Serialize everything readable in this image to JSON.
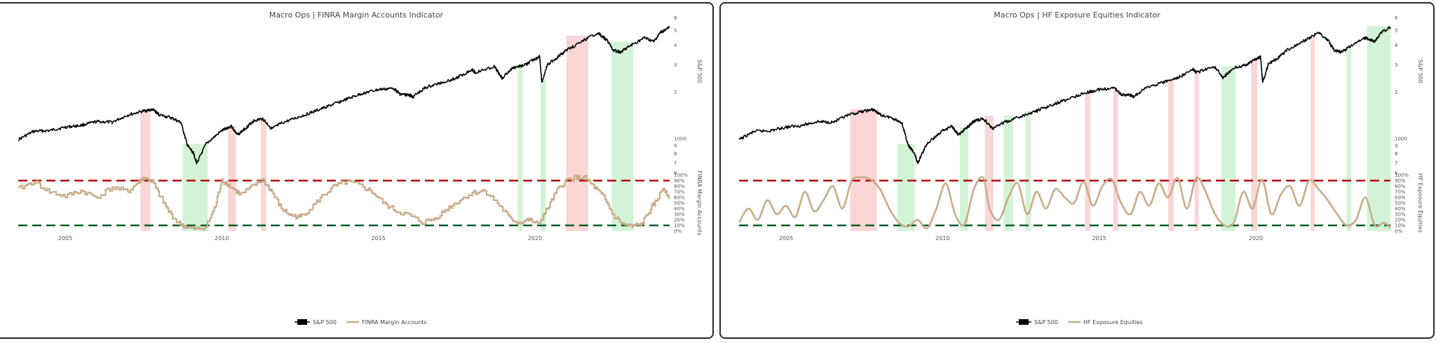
{
  "colors": {
    "sp500": "#000000",
    "indicator": "#c8ac8a",
    "upper_line": "#b30000",
    "lower_line": "#0b5d2a",
    "sell_zone": "#f5a3a3",
    "buy_zone": "#a8e8b0",
    "panel_border": "#2b2b2b"
  },
  "chart_data": [
    {
      "type": "line",
      "title": "Macro Ops | FINRA Margin Accounts Indicator",
      "x_range": [
        2003.5,
        2024.3
      ],
      "x_ticks": [
        "2005",
        "2010",
        "2015",
        "2020"
      ],
      "y_right": {
        "label": "S&P 500",
        "scale": "log",
        "range": [
          550,
          5200
        ],
        "ticks": [
          {
            "v": 600,
            "t": "6"
          },
          {
            "v": 700,
            "t": "7"
          },
          {
            "v": 800,
            "t": "8"
          },
          {
            "v": 900,
            "t": "9"
          },
          {
            "v": 1000,
            "t": "1000"
          },
          {
            "v": 2000,
            "t": "2"
          },
          {
            "v": 3000,
            "t": "3"
          },
          {
            "v": 4000,
            "t": "4"
          },
          {
            "v": 5000,
            "t": "5"
          },
          {
            "v": 6000,
            "t": "6"
          }
        ]
      },
      "y_right2": {
        "label": "FINRA Margin Accounts",
        "range": [
          0,
          100
        ],
        "ticks": [
          "0%",
          "10%",
          "20%",
          "30%",
          "40%",
          "50%",
          "60%",
          "70%",
          "80%",
          "90%",
          "100%"
        ]
      },
      "thresholds": {
        "upper": 90,
        "lower": 10
      },
      "legend": [
        "S&P 500",
        "FINRA Margin Accounts"
      ],
      "legend_position": "bottom-center",
      "indicator_style": "step",
      "series": [
        {
          "name": "S&P 500",
          "x": [
            2003.5,
            2004.0,
            2004.5,
            2005.0,
            2005.5,
            2006.0,
            2006.5,
            2007.0,
            2007.5,
            2007.8,
            2008.0,
            2008.4,
            2008.7,
            2008.9,
            2009.1,
            2009.2,
            2009.5,
            2010.0,
            2010.3,
            2010.5,
            2010.8,
            2011.0,
            2011.3,
            2011.6,
            2011.9,
            2012.5,
            2013.0,
            2013.5,
            2014.0,
            2014.5,
            2015.0,
            2015.5,
            2015.7,
            2016.0,
            2016.1,
            2016.5,
            2017.0,
            2017.5,
            2018.0,
            2018.1,
            2018.7,
            2018.95,
            2019.3,
            2019.7,
            2020.0,
            2020.15,
            2020.22,
            2020.4,
            2020.7,
            2021.0,
            2021.5,
            2022.0,
            2022.3,
            2022.5,
            2022.75,
            2023.0,
            2023.5,
            2023.8,
            2024.0,
            2024.3
          ],
          "values": [
            980,
            1110,
            1120,
            1180,
            1210,
            1280,
            1270,
            1410,
            1500,
            1530,
            1420,
            1350,
            1260,
            900,
            800,
            690,
            920,
            1120,
            1200,
            1050,
            1180,
            1290,
            1340,
            1150,
            1250,
            1380,
            1500,
            1640,
            1790,
            1950,
            2060,
            2100,
            1920,
            1900,
            1850,
            2120,
            2280,
            2450,
            2780,
            2650,
            2900,
            2450,
            2850,
            2980,
            3250,
            3350,
            2300,
            3000,
            3300,
            3700,
            4200,
            4790,
            4300,
            3700,
            3600,
            3900,
            4450,
            4200,
            4800,
            5200
          ]
        },
        {
          "name": "FINRA Margin Accounts",
          "x": [
            2003.5,
            2004.0,
            2004.5,
            2005.0,
            2005.5,
            2006.0,
            2006.5,
            2007.0,
            2007.3,
            2007.5,
            2007.8,
            2008.0,
            2008.3,
            2008.6,
            2008.9,
            2009.2,
            2009.5,
            2009.8,
            2010.0,
            2010.3,
            2010.6,
            2011.0,
            2011.3,
            2011.6,
            2011.9,
            2012.2,
            2012.5,
            2012.8,
            2013.2,
            2013.6,
            2014.0,
            2014.4,
            2014.8,
            2015.2,
            2015.6,
            2016.0,
            2016.4,
            2016.8,
            2017.2,
            2017.6,
            2018.0,
            2018.4,
            2018.8,
            2019.2,
            2019.5,
            2019.8,
            2020.1,
            2020.4,
            2020.7,
            2021.0,
            2021.3,
            2021.6,
            2021.9,
            2022.2,
            2022.5,
            2022.8,
            2023.1,
            2023.4,
            2023.7,
            2023.9,
            2024.1,
            2024.3
          ],
          "values": [
            75,
            88,
            70,
            62,
            72,
            60,
            78,
            70,
            85,
            95,
            88,
            65,
            35,
            15,
            6,
            3,
            8,
            45,
            92,
            78,
            65,
            80,
            92,
            70,
            40,
            28,
            25,
            38,
            62,
            80,
            88,
            82,
            70,
            48,
            35,
            28,
            15,
            22,
            40,
            55,
            68,
            72,
            50,
            22,
            15,
            20,
            12,
            40,
            72,
            90,
            96,
            95,
            78,
            60,
            28,
            12,
            8,
            12,
            40,
            55,
            78,
            60
          ]
        }
      ],
      "zones": [
        {
          "kind": "sell",
          "x0": 2007.4,
          "x1": 2007.72,
          "v_top": 1530
        },
        {
          "kind": "buy",
          "x0": 2008.75,
          "x1": 2009.55,
          "v_top": 920
        },
        {
          "kind": "sell",
          "x0": 2010.2,
          "x1": 2010.45,
          "v_top": 1200
        },
        {
          "kind": "sell",
          "x0": 2011.25,
          "x1": 2011.42,
          "v_top": 1340
        },
        {
          "kind": "buy",
          "x0": 2019.45,
          "x1": 2019.6,
          "v_top": 2980
        },
        {
          "kind": "buy",
          "x0": 2020.18,
          "x1": 2020.35,
          "v_top": 2400
        },
        {
          "kind": "sell",
          "x0": 2021.0,
          "x1": 2021.7,
          "v_top": 4600
        },
        {
          "kind": "buy",
          "x0": 2022.45,
          "x1": 2023.15,
          "v_top": 4200
        }
      ]
    },
    {
      "type": "line",
      "title": "Macro Ops | HF Exposure Equities Indicator",
      "x_range": [
        2003.5,
        2024.3
      ],
      "x_ticks": [
        "2005",
        "2010",
        "2015",
        "2020"
      ],
      "y_right": {
        "label": "S&P 500",
        "scale": "log",
        "range": [
          550,
          5200
        ],
        "ticks": [
          {
            "v": 600,
            "t": "6"
          },
          {
            "v": 700,
            "t": "7"
          },
          {
            "v": 800,
            "t": "8"
          },
          {
            "v": 900,
            "t": "9"
          },
          {
            "v": 1000,
            "t": "1000"
          },
          {
            "v": 2000,
            "t": "2"
          },
          {
            "v": 3000,
            "t": "3"
          },
          {
            "v": 4000,
            "t": "4"
          },
          {
            "v": 5000,
            "t": "5"
          },
          {
            "v": 6000,
            "t": "6"
          }
        ]
      },
      "y_right2": {
        "label": "HF Exposure Equities",
        "range": [
          0,
          100
        ],
        "ticks": [
          "0%",
          "10%",
          "20%",
          "30%",
          "40%",
          "50%",
          "60%",
          "70%",
          "80%",
          "90%",
          "100%"
        ]
      },
      "thresholds": {
        "upper": 90,
        "lower": 10
      },
      "legend": [
        "S&P 500",
        "HF Exposure Equities"
      ],
      "legend_position": "bottom-center",
      "indicator_style": "smooth",
      "series": [
        {
          "name": "S&P 500",
          "x": [
            2003.5,
            2004.0,
            2004.5,
            2005.0,
            2005.5,
            2006.0,
            2006.5,
            2007.0,
            2007.5,
            2007.8,
            2008.0,
            2008.4,
            2008.7,
            2008.9,
            2009.1,
            2009.2,
            2009.5,
            2010.0,
            2010.3,
            2010.5,
            2010.8,
            2011.0,
            2011.3,
            2011.6,
            2011.9,
            2012.5,
            2013.0,
            2013.5,
            2014.0,
            2014.5,
            2015.0,
            2015.5,
            2015.7,
            2016.0,
            2016.1,
            2016.5,
            2017.0,
            2017.5,
            2018.0,
            2018.1,
            2018.7,
            2018.95,
            2019.3,
            2019.7,
            2020.0,
            2020.15,
            2020.22,
            2020.4,
            2020.7,
            2021.0,
            2021.5,
            2022.0,
            2022.3,
            2022.5,
            2022.75,
            2023.0,
            2023.5,
            2023.8,
            2024.0,
            2024.3
          ],
          "values": [
            980,
            1110,
            1120,
            1180,
            1210,
            1280,
            1270,
            1410,
            1500,
            1530,
            1420,
            1350,
            1260,
            900,
            800,
            690,
            920,
            1120,
            1200,
            1050,
            1180,
            1290,
            1340,
            1150,
            1250,
            1380,
            1500,
            1640,
            1790,
            1950,
            2060,
            2100,
            1920,
            1900,
            1850,
            2120,
            2280,
            2450,
            2780,
            2650,
            2900,
            2450,
            2850,
            2980,
            3250,
            3350,
            2300,
            3000,
            3300,
            3700,
            4200,
            4790,
            4300,
            3700,
            3600,
            3900,
            4450,
            4200,
            4800,
            5200
          ]
        },
        {
          "name": "HF Exposure Equities",
          "x": [
            2003.5,
            2003.8,
            2004.1,
            2004.4,
            2004.7,
            2005.0,
            2005.3,
            2005.6,
            2005.9,
            2006.2,
            2006.5,
            2006.8,
            2007.1,
            2007.4,
            2007.7,
            2008.0,
            2008.3,
            2008.6,
            2008.9,
            2009.2,
            2009.5,
            2009.8,
            2010.1,
            2010.4,
            2010.7,
            2011.0,
            2011.3,
            2011.5,
            2011.8,
            2012.1,
            2012.4,
            2012.7,
            2013.0,
            2013.3,
            2013.6,
            2013.9,
            2014.2,
            2014.5,
            2014.8,
            2015.1,
            2015.4,
            2015.7,
            2016.0,
            2016.3,
            2016.6,
            2016.9,
            2017.2,
            2017.5,
            2017.8,
            2018.1,
            2018.4,
            2018.7,
            2019.0,
            2019.3,
            2019.6,
            2019.9,
            2020.2,
            2020.5,
            2020.8,
            2021.1,
            2021.4,
            2021.7,
            2022.0,
            2022.3,
            2022.6,
            2022.9,
            2023.2,
            2023.5,
            2023.8,
            2024.1,
            2024.3
          ],
          "values": [
            15,
            40,
            20,
            55,
            30,
            45,
            25,
            70,
            35,
            55,
            80,
            40,
            90,
            96,
            92,
            75,
            40,
            15,
            8,
            20,
            5,
            40,
            85,
            30,
            12,
            75,
            95,
            40,
            20,
            60,
            85,
            30,
            70,
            40,
            75,
            60,
            50,
            88,
            45,
            80,
            92,
            50,
            30,
            70,
            45,
            85,
            60,
            95,
            40,
            95,
            70,
            30,
            10,
            15,
            70,
            40,
            92,
            30,
            65,
            80,
            45,
            90,
            75,
            55,
            30,
            10,
            20,
            60,
            10,
            15,
            5
          ]
        }
      ],
      "zones": [
        {
          "kind": "sell",
          "x0": 2007.05,
          "x1": 2007.9,
          "v_top": 1540
        },
        {
          "kind": "buy",
          "x0": 2008.55,
          "x1": 2009.1,
          "v_top": 920
        },
        {
          "kind": "buy",
          "x0": 2010.55,
          "x1": 2010.82,
          "v_top": 1180
        },
        {
          "kind": "sell",
          "x0": 2011.35,
          "x1": 2011.62,
          "v_top": 1400
        },
        {
          "kind": "buy",
          "x0": 2011.95,
          "x1": 2012.25,
          "v_top": 1400
        },
        {
          "kind": "buy",
          "x0": 2012.65,
          "x1": 2012.82,
          "v_top": 1500
        },
        {
          "kind": "sell",
          "x0": 2014.55,
          "x1": 2014.72,
          "v_top": 1950
        },
        {
          "kind": "sell",
          "x0": 2015.45,
          "x1": 2015.6,
          "v_top": 2100
        },
        {
          "kind": "sell",
          "x0": 2017.2,
          "x1": 2017.38,
          "v_top": 2400
        },
        {
          "kind": "sell",
          "x0": 2018.05,
          "x1": 2018.18,
          "v_top": 2780
        },
        {
          "kind": "buy",
          "x0": 2018.9,
          "x1": 2019.35,
          "v_top": 2900
        },
        {
          "kind": "sell",
          "x0": 2019.85,
          "x1": 2020.05,
          "v_top": 3250
        },
        {
          "kind": "sell",
          "x0": 2021.75,
          "x1": 2021.88,
          "v_top": 4600
        },
        {
          "kind": "buy",
          "x0": 2022.9,
          "x1": 2023.05,
          "v_top": 4000
        },
        {
          "kind": "buy",
          "x0": 2023.55,
          "x1": 2024.3,
          "v_top": 5300
        }
      ]
    }
  ]
}
